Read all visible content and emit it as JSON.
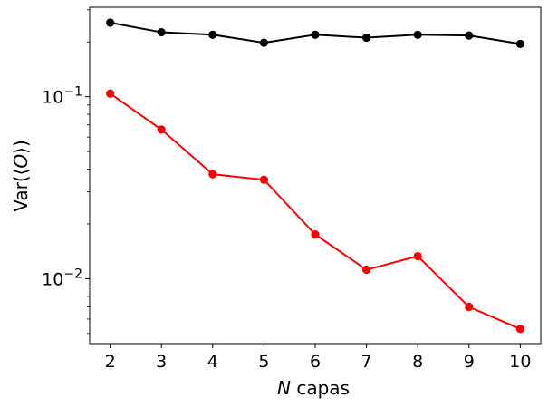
{
  "chart_data": {
    "type": "line",
    "x": [
      2,
      3,
      4,
      5,
      6,
      7,
      8,
      9,
      10
    ],
    "series": [
      {
        "color": "#000000",
        "values": [
          0.255,
          0.226,
          0.219,
          0.198,
          0.219,
          0.211,
          0.219,
          0.217,
          0.195
        ]
      },
      {
        "color": "#ff0000",
        "values": [
          0.104,
          0.066,
          0.0375,
          0.035,
          0.0175,
          0.0112,
          0.0133,
          0.007,
          0.0053
        ]
      }
    ],
    "xlabel": "N capas",
    "xlabel_italic": "N",
    "xlabel_rest": " capas",
    "ylabel": "Var(⟨O⟩)",
    "ylabel_pre": "Var(⟨",
    "ylabel_italic": "O",
    "ylabel_post": "⟩)",
    "yscale": "log",
    "xlim": [
      1.6,
      10.4
    ],
    "ylim": [
      0.0044,
      0.31
    ],
    "xticks": [
      2,
      3,
      4,
      5,
      6,
      7,
      8,
      9,
      10
    ],
    "yticks_major": [
      {
        "value": 0.1,
        "base": "10",
        "exp": "−1"
      },
      {
        "value": 0.01,
        "base": "10",
        "exp": "−2"
      }
    ],
    "grid": false,
    "legend": false
  }
}
